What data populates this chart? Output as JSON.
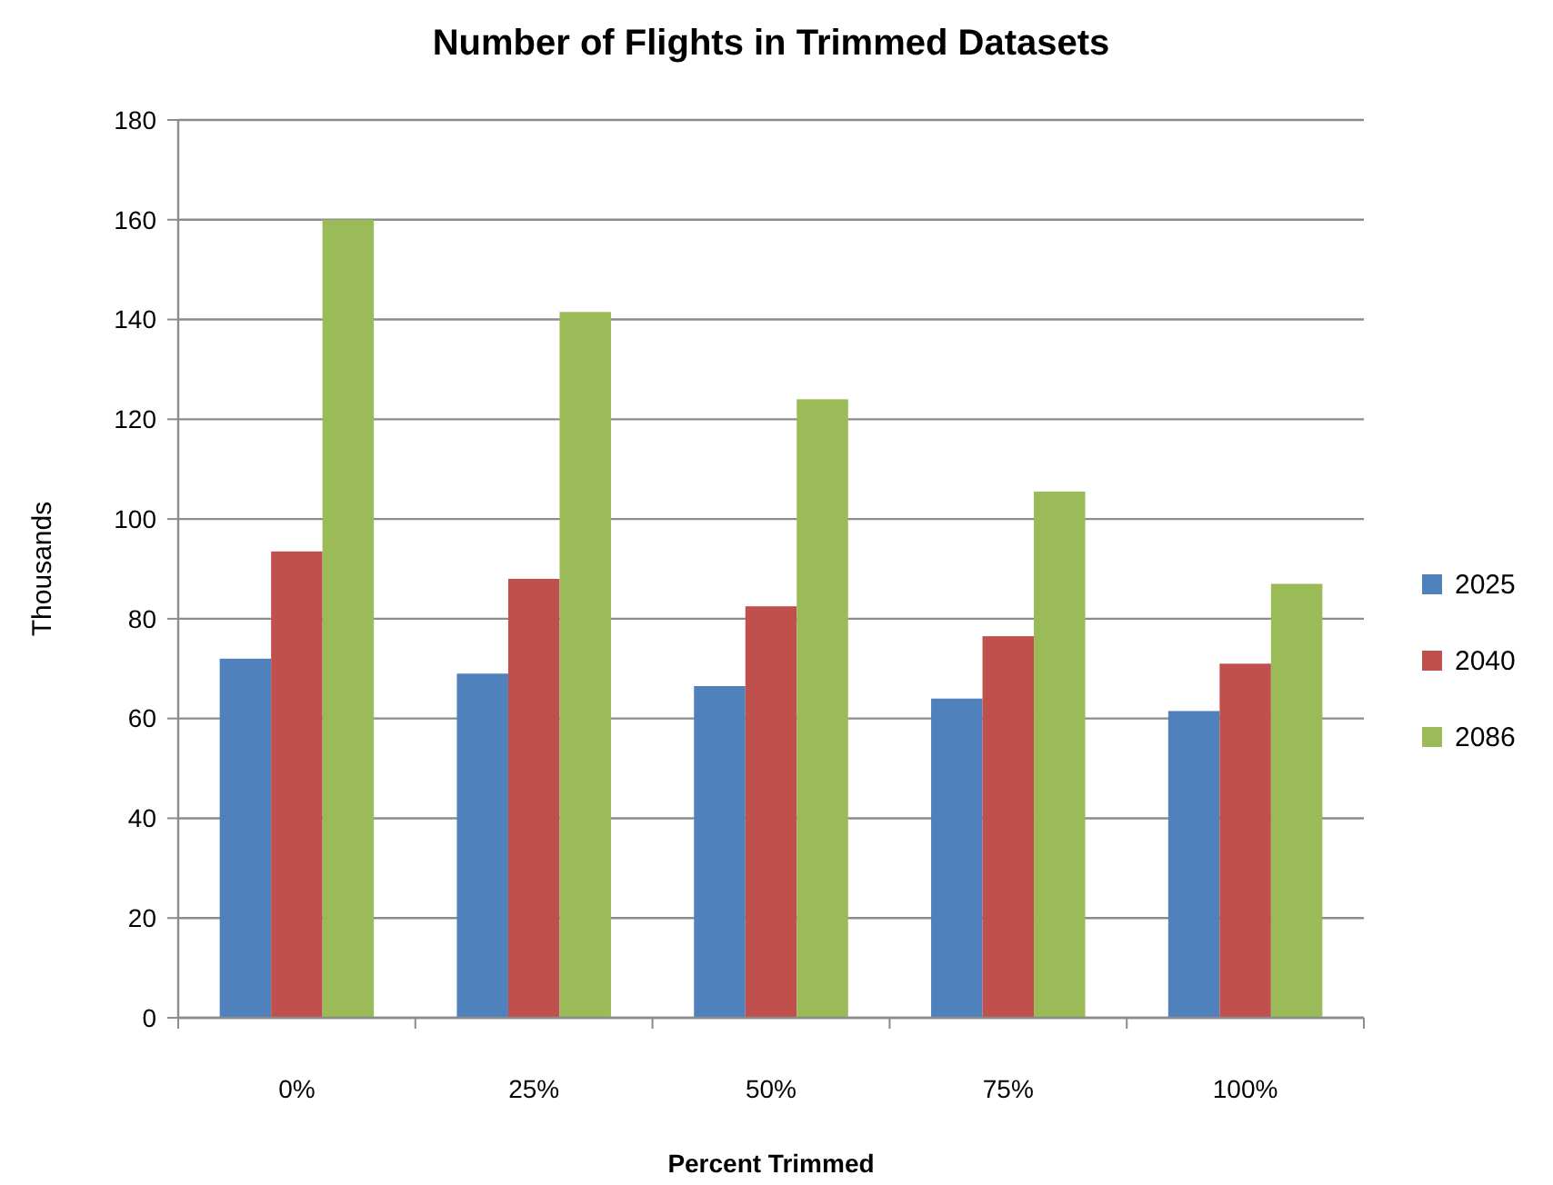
{
  "chart_data": {
    "type": "bar",
    "title": "Number of Flights in Trimmed Datasets",
    "xlabel": "Percent Trimmed",
    "ylabel": "Thousands",
    "categories": [
      "0%",
      "25%",
      "50%",
      "75%",
      "100%"
    ],
    "series": [
      {
        "name": "2025",
        "color": "#4f81bd",
        "values": [
          72,
          69,
          66.5,
          64,
          61.5
        ]
      },
      {
        "name": "2040",
        "color": "#c0504d",
        "values": [
          93.5,
          88,
          82.5,
          76.5,
          71
        ]
      },
      {
        "name": "2086",
        "color": "#9bbb59",
        "values": [
          160,
          141.5,
          124,
          105.5,
          87
        ]
      }
    ],
    "ylim": [
      0,
      180
    ],
    "yticks": [
      0,
      20,
      40,
      60,
      80,
      100,
      120,
      140,
      160,
      180
    ],
    "grid": "y",
    "legend": "right"
  }
}
